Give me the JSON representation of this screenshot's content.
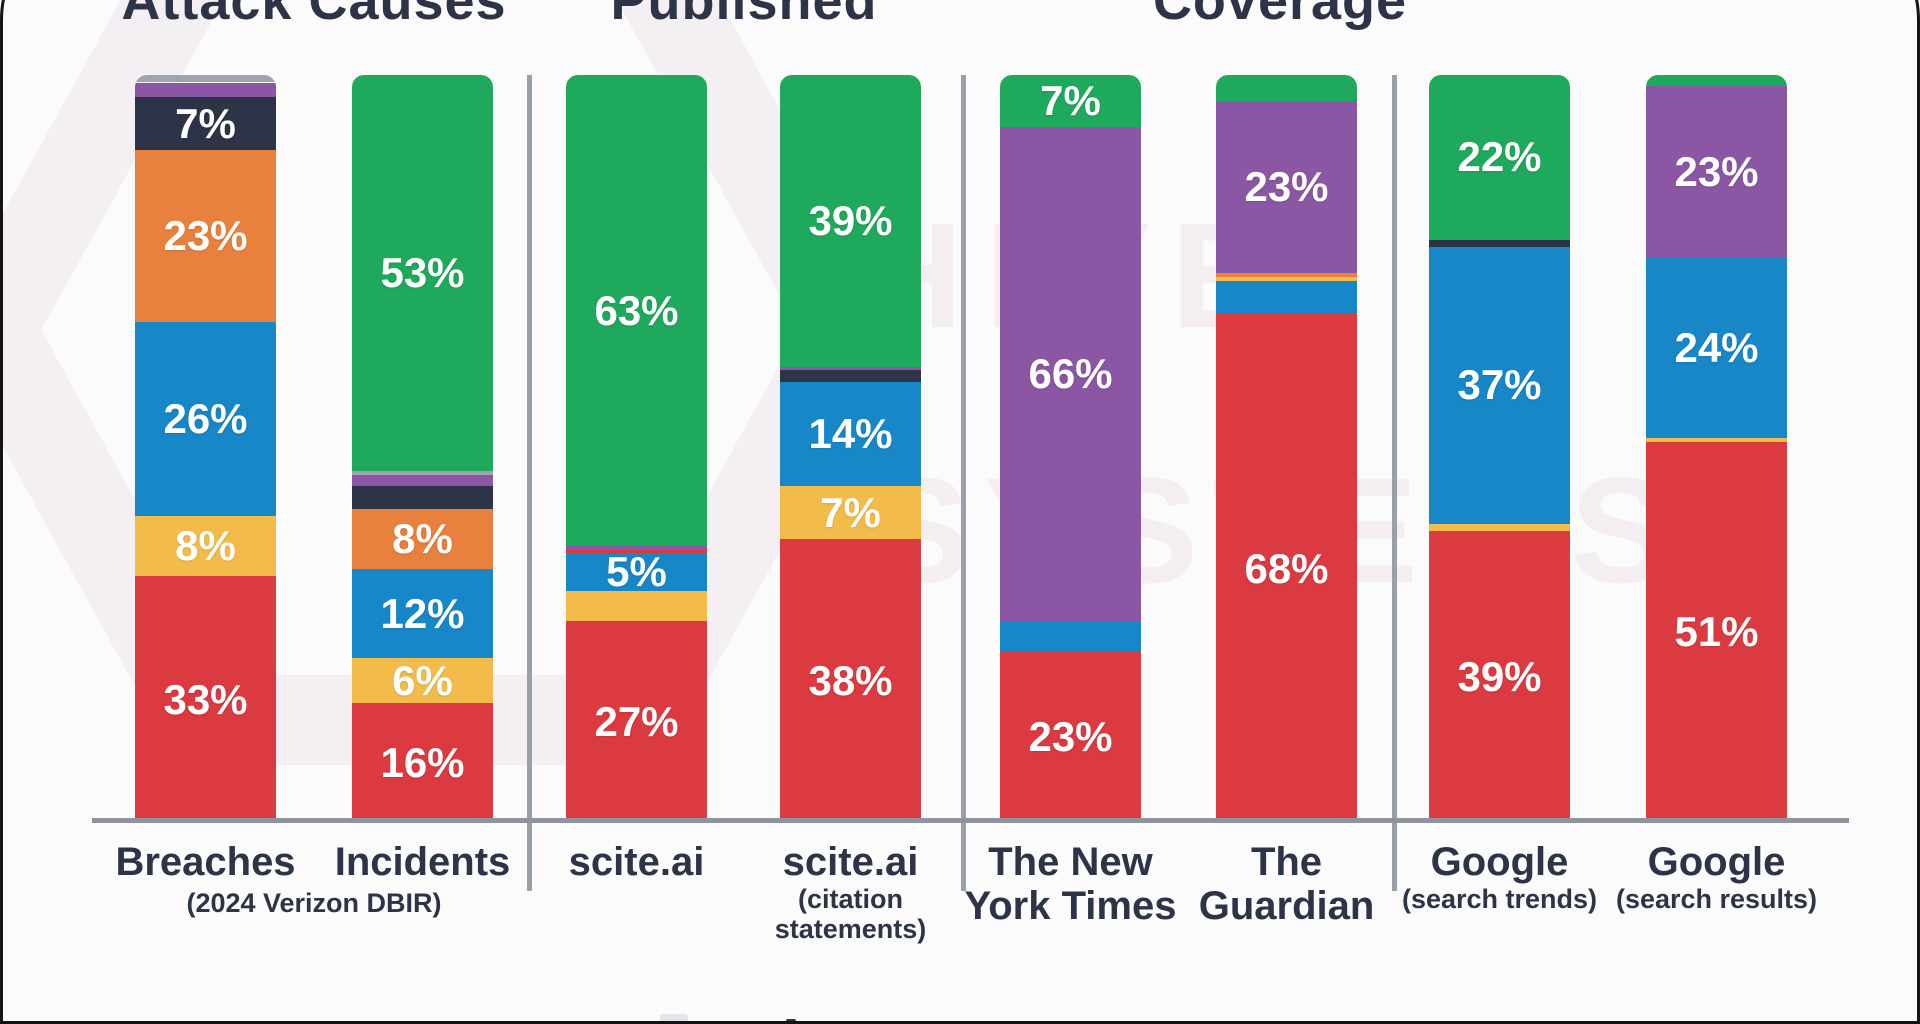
{
  "watermark": {
    "line1": "HIVE",
    "line2": "SYSTEMS"
  },
  "chart_data": {
    "type": "bar",
    "stacked": true,
    "unit": "percent",
    "value_range": [
      0,
      100
    ],
    "grid": false,
    "legend_position": "cut-off-below",
    "palette": {
      "red": "#DB3B40",
      "orange": "#E8813D",
      "yellow": "#F3BC4A",
      "blue": "#1787C8",
      "navy": "#2E3447",
      "purple": "#8B57A4",
      "green": "#1FA95C",
      "gray": "#A0A4AD"
    },
    "groups": [
      {
        "title": "Attack Causes",
        "bar_indexes": [
          0,
          1
        ],
        "footnote": "(2024 Verizon DBIR)"
      },
      {
        "title": "Published",
        "bar_indexes": [
          2,
          3
        ],
        "footnote": ""
      },
      {
        "title": "Coverage",
        "bar_indexes": [
          4,
          5,
          6,
          7
        ],
        "footnote": ""
      }
    ],
    "bars": [
      {
        "label_lines": [
          "Breaches"
        ],
        "sublabel_lines": [],
        "segments": [
          {
            "color": "red",
            "value": 33,
            "label": "33%"
          },
          {
            "color": "yellow",
            "value": 8,
            "label": "8%"
          },
          {
            "color": "blue",
            "value": 26,
            "label": "26%"
          },
          {
            "color": "orange",
            "value": 23,
            "label": "23%"
          },
          {
            "color": "navy",
            "value": 7,
            "label": "7%"
          },
          {
            "color": "purple",
            "value": 2,
            "label": ""
          },
          {
            "color": "gray",
            "value": 1,
            "label": ""
          }
        ]
      },
      {
        "label_lines": [
          "Incidents"
        ],
        "sublabel_lines": [],
        "segments": [
          {
            "color": "red",
            "value": 16,
            "label": "16%"
          },
          {
            "color": "yellow",
            "value": 6,
            "label": "6%"
          },
          {
            "color": "blue",
            "value": 12,
            "label": "12%"
          },
          {
            "color": "orange",
            "value": 8,
            "label": "8%"
          },
          {
            "color": "navy",
            "value": 3,
            "label": ""
          },
          {
            "color": "purple",
            "value": 1.5,
            "label": ""
          },
          {
            "color": "gray",
            "value": 0.5,
            "label": ""
          },
          {
            "color": "green",
            "value": 53,
            "label": "53%"
          }
        ]
      },
      {
        "label_lines": [
          "scite.ai"
        ],
        "sublabel_lines": [],
        "segments": [
          {
            "color": "red",
            "value": 27,
            "label": "27%"
          },
          {
            "color": "yellow",
            "value": 4,
            "label": ""
          },
          {
            "color": "blue",
            "value": 5,
            "label": "5%"
          },
          {
            "color": "red",
            "value": 0.5,
            "label": ""
          },
          {
            "color": "purple",
            "value": 0.5,
            "label": ""
          },
          {
            "color": "green",
            "value": 63,
            "label": "63%"
          }
        ]
      },
      {
        "label_lines": [
          "scite.ai"
        ],
        "sublabel_lines": [
          "(citation",
          "statements)"
        ],
        "segments": [
          {
            "color": "red",
            "value": 38,
            "label": "38%"
          },
          {
            "color": "yellow",
            "value": 7,
            "label": "7%"
          },
          {
            "color": "blue",
            "value": 14,
            "label": "14%"
          },
          {
            "color": "navy",
            "value": 1.5,
            "label": ""
          },
          {
            "color": "purple",
            "value": 0.5,
            "label": ""
          },
          {
            "color": "green",
            "value": 39,
            "label": "39%"
          }
        ]
      },
      {
        "label_lines": [
          "The New",
          "York Times"
        ],
        "sublabel_lines": [],
        "segments": [
          {
            "color": "red",
            "value": 23,
            "label": "23%"
          },
          {
            "color": "blue",
            "value": 4,
            "label": ""
          },
          {
            "color": "purple",
            "value": 66,
            "label": "66%"
          },
          {
            "color": "green",
            "value": 7,
            "label": "7%"
          }
        ]
      },
      {
        "label_lines": [
          "The",
          "Guardian"
        ],
        "sublabel_lines": [],
        "segments": [
          {
            "color": "red",
            "value": 68,
            "label": "68%"
          },
          {
            "color": "blue",
            "value": 4.5,
            "label": ""
          },
          {
            "color": "yellow",
            "value": 0.5,
            "label": ""
          },
          {
            "color": "orange",
            "value": 0.5,
            "label": ""
          },
          {
            "color": "purple",
            "value": 23,
            "label": "23%"
          },
          {
            "color": "green",
            "value": 3.5,
            "label": ""
          }
        ]
      },
      {
        "label_lines": [
          "Google"
        ],
        "sublabel_lines": [
          "(search trends)"
        ],
        "segments": [
          {
            "color": "red",
            "value": 39,
            "label": "39%"
          },
          {
            "color": "yellow",
            "value": 1,
            "label": ""
          },
          {
            "color": "blue",
            "value": 37,
            "label": "37%"
          },
          {
            "color": "navy",
            "value": 1,
            "label": ""
          },
          {
            "color": "green",
            "value": 22,
            "label": "22%"
          }
        ]
      },
      {
        "label_lines": [
          "Google"
        ],
        "sublabel_lines": [
          "(search results)"
        ],
        "segments": [
          {
            "color": "red",
            "value": 51,
            "label": "51%"
          },
          {
            "color": "yellow",
            "value": 0.5,
            "label": ""
          },
          {
            "color": "blue",
            "value": 24,
            "label": "24%"
          },
          {
            "color": "purple",
            "value": 23,
            "label": "23%"
          },
          {
            "color": "green",
            "value": 1.5,
            "label": ""
          }
        ]
      }
    ]
  }
}
